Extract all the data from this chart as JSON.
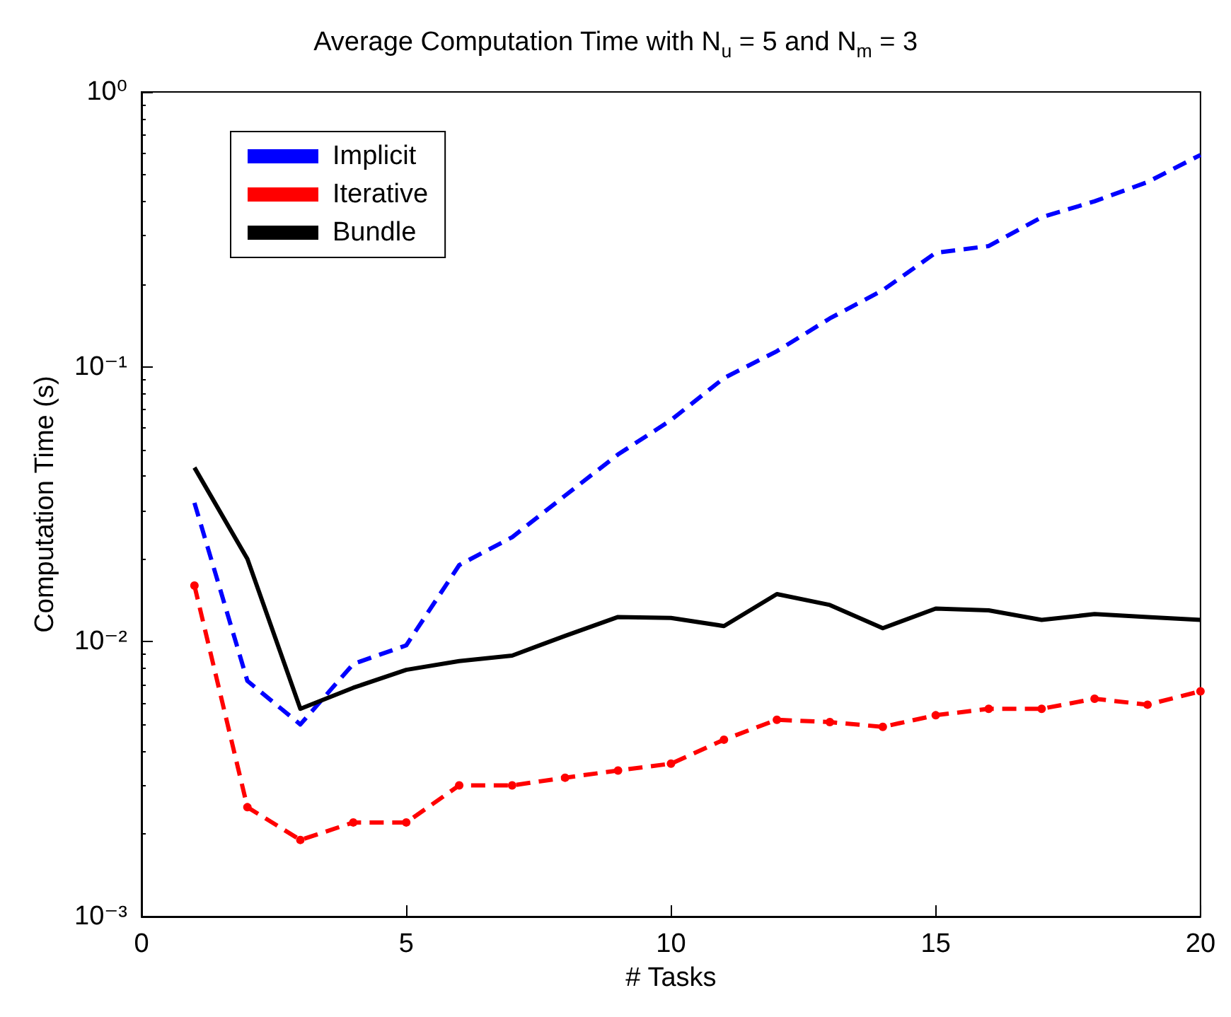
{
  "chart_data": {
    "type": "line",
    "title": "Average Computation Time with N$_{u}$ = 5 and N$_{m}$ = 3",
    "xlabel": "# Tasks",
    "ylabel": "Computation Time (s)",
    "log": "y",
    "grid": false,
    "legend": "top left",
    "x": [
      1,
      2,
      3,
      4,
      5,
      6,
      7,
      8,
      9,
      10,
      11,
      12,
      13,
      14,
      15,
      16,
      17,
      18,
      19,
      20
    ],
    "xlim": [
      0,
      20
    ],
    "xticks": [
      0,
      5,
      10,
      15,
      20
    ],
    "ylim": [
      0.001,
      1
    ],
    "yticks": [
      {
        "value": 0.001,
        "label": "10⁻³"
      },
      {
        "value": 0.01,
        "label": "10⁻²"
      },
      {
        "value": 0.1,
        "label": "10⁻¹"
      },
      {
        "value": 1,
        "label": "10⁰"
      }
    ],
    "series": [
      {
        "name": "Implicit",
        "color": "#0000ff",
        "line_style": "dashed",
        "marker": "none",
        "values": [
          0.032,
          0.0072,
          0.005,
          0.0083,
          0.0097,
          0.019,
          0.024,
          0.034,
          0.048,
          0.064,
          0.091,
          0.114,
          0.15,
          0.19,
          0.26,
          0.275,
          0.35,
          0.4,
          0.47,
          0.59
        ]
      },
      {
        "name": "Iterative",
        "color": "#ff0000",
        "line_style": "dashed",
        "marker": "circle",
        "values": [
          0.016,
          0.0025,
          0.0019,
          0.0022,
          0.0022,
          0.003,
          0.003,
          0.0032,
          0.0034,
          0.0036,
          0.0044,
          0.0052,
          0.0051,
          0.0049,
          0.0054,
          0.0057,
          0.0057,
          0.0062,
          0.0059,
          0.0066
        ]
      },
      {
        "name": "Bundle",
        "color": "#000000",
        "line_style": "solid",
        "marker": "none",
        "values": [
          0.043,
          0.02,
          0.0057,
          0.0068,
          0.0079,
          0.0085,
          0.0089,
          0.0105,
          0.0123,
          0.0122,
          0.0114,
          0.0149,
          0.0136,
          0.0112,
          0.0132,
          0.013,
          0.012,
          0.0126,
          0.0123,
          0.012
        ]
      }
    ]
  }
}
